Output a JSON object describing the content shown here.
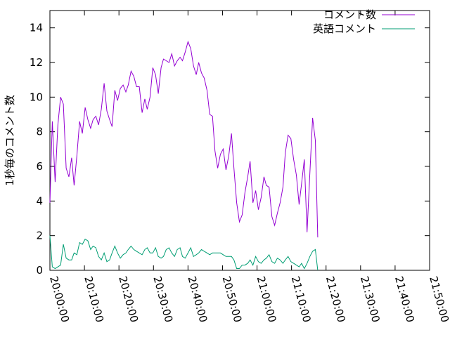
{
  "chart_data": {
    "type": "line",
    "title": "",
    "xlabel": "",
    "ylabel": "1秒毎のコメント数",
    "ylim": [
      0,
      15
    ],
    "yticks": [
      0,
      2,
      4,
      6,
      8,
      10,
      12,
      14
    ],
    "xlim_minutes": [
      0,
      110
    ],
    "xticks": [
      {
        "minutes": 0,
        "label": "20:00:00"
      },
      {
        "minutes": 10,
        "label": "20:10:00"
      },
      {
        "minutes": 20,
        "label": "20:20:00"
      },
      {
        "minutes": 30,
        "label": "20:30:00"
      },
      {
        "minutes": 40,
        "label": "20:40:00"
      },
      {
        "minutes": 50,
        "label": "20:50:00"
      },
      {
        "minutes": 60,
        "label": "21:00:00"
      },
      {
        "minutes": 70,
        "label": "21:10:00"
      },
      {
        "minutes": 80,
        "label": "21:20:00"
      },
      {
        "minutes": 90,
        "label": "21:30:00"
      },
      {
        "minutes": 100,
        "label": "21:40:00"
      },
      {
        "minutes": 110,
        "label": "21:50:00"
      }
    ],
    "grid": false,
    "legend_position": "top-right",
    "series": [
      {
        "name": "コメント数",
        "color": "#9400d3",
        "points": [
          [
            0,
            3.9
          ],
          [
            0.7,
            8.6
          ],
          [
            1.5,
            5.1
          ],
          [
            2.3,
            8.4
          ],
          [
            3.1,
            10.0
          ],
          [
            3.9,
            9.6
          ],
          [
            4.7,
            5.9
          ],
          [
            5.5,
            5.4
          ],
          [
            6.3,
            6.5
          ],
          [
            7.0,
            4.9
          ],
          [
            7.8,
            6.6
          ],
          [
            8.6,
            8.6
          ],
          [
            9.4,
            7.9
          ],
          [
            10.2,
            9.4
          ],
          [
            11.0,
            8.7
          ],
          [
            11.8,
            8.2
          ],
          [
            12.5,
            8.7
          ],
          [
            13.3,
            8.9
          ],
          [
            14.1,
            8.4
          ],
          [
            14.9,
            9.3
          ],
          [
            15.7,
            10.8
          ],
          [
            16.5,
            9.2
          ],
          [
            17.3,
            8.7
          ],
          [
            18.0,
            8.3
          ],
          [
            18.8,
            10.4
          ],
          [
            19.6,
            9.8
          ],
          [
            20.4,
            10.5
          ],
          [
            21.2,
            10.7
          ],
          [
            22.0,
            10.3
          ],
          [
            22.7,
            10.7
          ],
          [
            23.5,
            11.5
          ],
          [
            24.3,
            11.2
          ],
          [
            25.1,
            10.6
          ],
          [
            25.9,
            10.6
          ],
          [
            26.7,
            9.1
          ],
          [
            27.5,
            9.9
          ],
          [
            28.2,
            9.3
          ],
          [
            29.0,
            10.0
          ],
          [
            29.8,
            11.7
          ],
          [
            30.6,
            11.3
          ],
          [
            31.4,
            10.2
          ],
          [
            32.2,
            11.7
          ],
          [
            32.9,
            12.2
          ],
          [
            33.7,
            12.1
          ],
          [
            34.5,
            12.0
          ],
          [
            35.3,
            12.5
          ],
          [
            36.1,
            11.8
          ],
          [
            36.9,
            12.1
          ],
          [
            37.7,
            12.3
          ],
          [
            38.4,
            12.1
          ],
          [
            39.2,
            12.6
          ],
          [
            40.0,
            13.2
          ],
          [
            40.8,
            12.8
          ],
          [
            41.6,
            11.8
          ],
          [
            42.4,
            11.3
          ],
          [
            43.1,
            12.0
          ],
          [
            43.9,
            11.4
          ],
          [
            44.7,
            11.1
          ],
          [
            45.5,
            10.4
          ],
          [
            46.3,
            9.0
          ],
          [
            47.1,
            8.9
          ],
          [
            47.8,
            6.9
          ],
          [
            48.6,
            5.9
          ],
          [
            49.4,
            6.7
          ],
          [
            50.2,
            7.0
          ],
          [
            51.0,
            5.8
          ],
          [
            51.8,
            6.6
          ],
          [
            52.6,
            7.9
          ],
          [
            53.3,
            5.9
          ],
          [
            54.1,
            3.9
          ],
          [
            54.9,
            2.8
          ],
          [
            55.7,
            3.2
          ],
          [
            56.5,
            4.5
          ],
          [
            57.3,
            5.4
          ],
          [
            58.0,
            6.3
          ],
          [
            58.8,
            3.9
          ],
          [
            59.6,
            4.6
          ],
          [
            60.4,
            3.5
          ],
          [
            61.2,
            4.2
          ],
          [
            62.0,
            5.4
          ],
          [
            62.7,
            4.9
          ],
          [
            63.5,
            4.8
          ],
          [
            64.3,
            3.1
          ],
          [
            65.1,
            2.6
          ],
          [
            65.9,
            3.3
          ],
          [
            66.7,
            3.9
          ],
          [
            67.5,
            4.8
          ],
          [
            68.2,
            6.8
          ],
          [
            69.0,
            7.8
          ],
          [
            69.8,
            7.6
          ],
          [
            70.6,
            6.4
          ],
          [
            71.4,
            5.5
          ],
          [
            72.2,
            3.8
          ],
          [
            72.9,
            5.0
          ],
          [
            73.7,
            6.4
          ],
          [
            74.5,
            2.2
          ],
          [
            75.3,
            5.6
          ],
          [
            76.1,
            8.8
          ],
          [
            76.9,
            7.5
          ],
          [
            77.6,
            1.9
          ]
        ]
      },
      {
        "name": "英語コメント",
        "color": "#009e73",
        "points": [
          [
            0,
            2.0
          ],
          [
            0.7,
            0.2
          ],
          [
            1.5,
            0.1
          ],
          [
            2.3,
            0.2
          ],
          [
            3.1,
            0.3
          ],
          [
            3.9,
            1.5
          ],
          [
            4.7,
            0.7
          ],
          [
            5.5,
            0.6
          ],
          [
            6.3,
            0.6
          ],
          [
            7.0,
            1.0
          ],
          [
            7.8,
            0.9
          ],
          [
            8.6,
            1.6
          ],
          [
            9.4,
            1.5
          ],
          [
            10.2,
            1.8
          ],
          [
            11.0,
            1.7
          ],
          [
            11.8,
            1.2
          ],
          [
            12.5,
            1.4
          ],
          [
            13.3,
            1.3
          ],
          [
            14.1,
            0.8
          ],
          [
            14.9,
            0.6
          ],
          [
            15.7,
            1.0
          ],
          [
            16.5,
            0.5
          ],
          [
            17.3,
            0.6
          ],
          [
            18.0,
            1.0
          ],
          [
            18.8,
            1.4
          ],
          [
            19.6,
            1.0
          ],
          [
            20.4,
            0.7
          ],
          [
            21.2,
            0.9
          ],
          [
            22.0,
            1.0
          ],
          [
            22.7,
            1.2
          ],
          [
            23.5,
            1.4
          ],
          [
            24.3,
            1.2
          ],
          [
            25.1,
            1.1
          ],
          [
            25.9,
            1.0
          ],
          [
            26.7,
            0.9
          ],
          [
            27.5,
            1.2
          ],
          [
            28.2,
            1.3
          ],
          [
            29.0,
            1.0
          ],
          [
            29.8,
            1.0
          ],
          [
            30.6,
            1.3
          ],
          [
            31.4,
            0.8
          ],
          [
            32.2,
            0.7
          ],
          [
            32.9,
            0.8
          ],
          [
            33.7,
            1.2
          ],
          [
            34.5,
            1.3
          ],
          [
            35.3,
            1.0
          ],
          [
            36.1,
            0.8
          ],
          [
            36.9,
            1.2
          ],
          [
            37.7,
            1.3
          ],
          [
            38.4,
            0.8
          ],
          [
            39.2,
            0.7
          ],
          [
            40.0,
            1.0
          ],
          [
            40.8,
            1.3
          ],
          [
            41.6,
            0.8
          ],
          [
            42.4,
            0.9
          ],
          [
            43.1,
            1.0
          ],
          [
            43.9,
            1.2
          ],
          [
            44.7,
            1.1
          ],
          [
            45.5,
            1.0
          ],
          [
            46.3,
            0.9
          ],
          [
            47.1,
            1.0
          ],
          [
            47.8,
            1.0
          ],
          [
            48.6,
            1.0
          ],
          [
            49.4,
            1.0
          ],
          [
            50.2,
            0.9
          ],
          [
            51.0,
            0.8
          ],
          [
            51.8,
            0.8
          ],
          [
            52.6,
            0.8
          ],
          [
            53.3,
            0.6
          ],
          [
            54.1,
            0.1
          ],
          [
            54.9,
            0.1
          ],
          [
            55.7,
            0.3
          ],
          [
            56.5,
            0.3
          ],
          [
            57.3,
            0.4
          ],
          [
            58.0,
            0.6
          ],
          [
            58.8,
            0.3
          ],
          [
            59.6,
            0.8
          ],
          [
            60.4,
            0.5
          ],
          [
            61.2,
            0.4
          ],
          [
            62.0,
            0.6
          ],
          [
            62.7,
            0.7
          ],
          [
            63.5,
            0.9
          ],
          [
            64.3,
            0.5
          ],
          [
            65.1,
            0.4
          ],
          [
            65.9,
            0.7
          ],
          [
            66.7,
            0.6
          ],
          [
            67.5,
            0.4
          ],
          [
            68.2,
            0.6
          ],
          [
            69.0,
            0.8
          ],
          [
            69.8,
            0.5
          ],
          [
            70.6,
            0.4
          ],
          [
            71.4,
            0.3
          ],
          [
            72.2,
            0.2
          ],
          [
            72.9,
            0.4
          ],
          [
            73.7,
            0.1
          ],
          [
            74.5,
            0.4
          ],
          [
            75.3,
            0.8
          ],
          [
            76.1,
            1.1
          ],
          [
            76.9,
            1.2
          ],
          [
            77.6,
            0.0
          ]
        ]
      }
    ]
  }
}
